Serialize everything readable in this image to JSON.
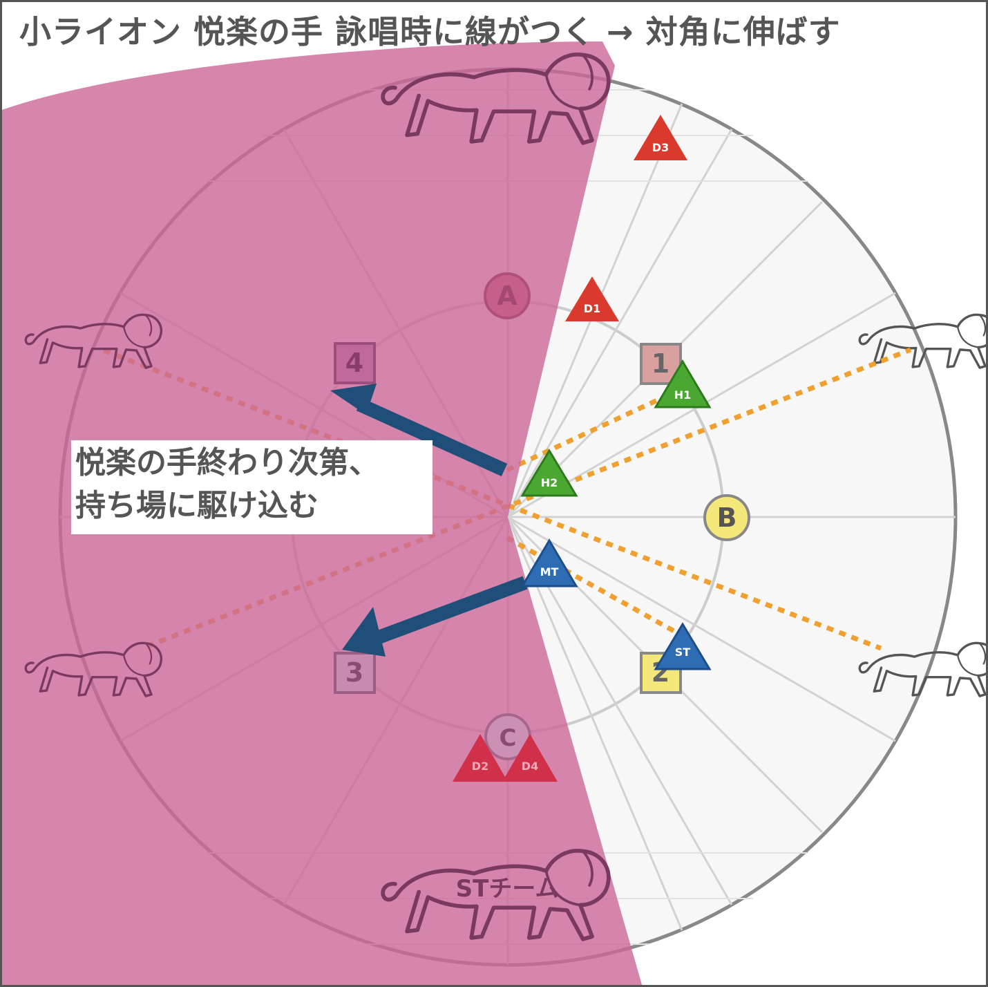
{
  "title": "小ライオン 悦楽の手 詠唱時に線がつく → 対角に伸ばす",
  "note": {
    "line1": "悦楽の手終わり次第、",
    "line2": "持ち場に駆け込む"
  },
  "waymarks": {
    "A": "A",
    "B": "B",
    "C": "C",
    "m1": "1",
    "m2": "2",
    "m3": "3",
    "m4": "4"
  },
  "players": {
    "D1": "D1",
    "D2": "D2",
    "D3": "D3",
    "D4": "D4",
    "H1": "H1",
    "H2": "H2",
    "MT": "MT",
    "ST": "ST"
  },
  "st_team_label": "STチーム",
  "colors": {
    "aoe": "#cc6699",
    "tether": "#f0a030",
    "arrow": "#1f4e79",
    "dps": "#d93a2b",
    "healer": "#4aa832",
    "tank": "#2e6db4",
    "waymark_yellow": "#f5e87a",
    "waymark_red": "#d9a0a0",
    "arena_bg": "#f7f7f7"
  },
  "icons": {
    "lion": "lion-icon"
  }
}
